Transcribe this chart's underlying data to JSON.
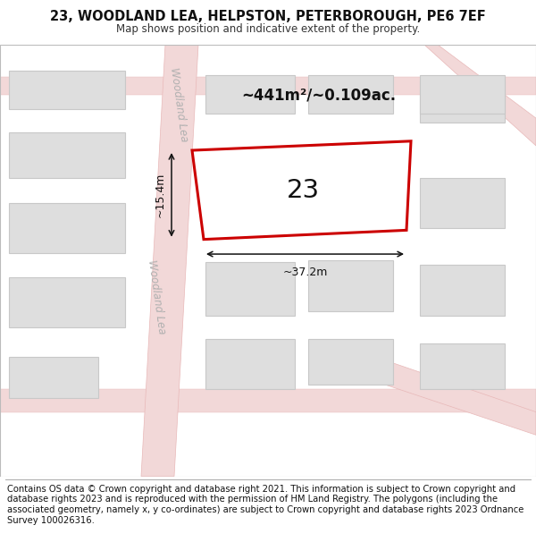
{
  "title_line1": "23, WOODLAND LEA, HELPSTON, PETERBOROUGH, PE6 7EF",
  "title_line2": "Map shows position and indicative extent of the property.",
  "footer_text": "Contains OS data © Crown copyright and database right 2021. This information is subject to Crown copyright and database rights 2023 and is reproduced with the permission of HM Land Registry. The polygons (including the associated geometry, namely x, y co-ordinates) are subject to Crown copyright and database rights 2023 Ordnance Survey 100026316.",
  "background_color": "#ffffff",
  "map_bg": "#f0f0f0",
  "road_fill": "#f2d8d8",
  "road_edge": "#e8b8b8",
  "building_fill": "#dedede",
  "building_edge": "#c8c8c8",
  "highlight_color": "#cc0000",
  "street_label": "Woodland Lea",
  "area_label": "~441m²/~0.109ac.",
  "property_number": "23",
  "dim_width": "~37.2m",
  "dim_height": "~15.4m",
  "title_fontsize": 10.5,
  "subtitle_fontsize": 8.5,
  "footer_fontsize": 7.2
}
